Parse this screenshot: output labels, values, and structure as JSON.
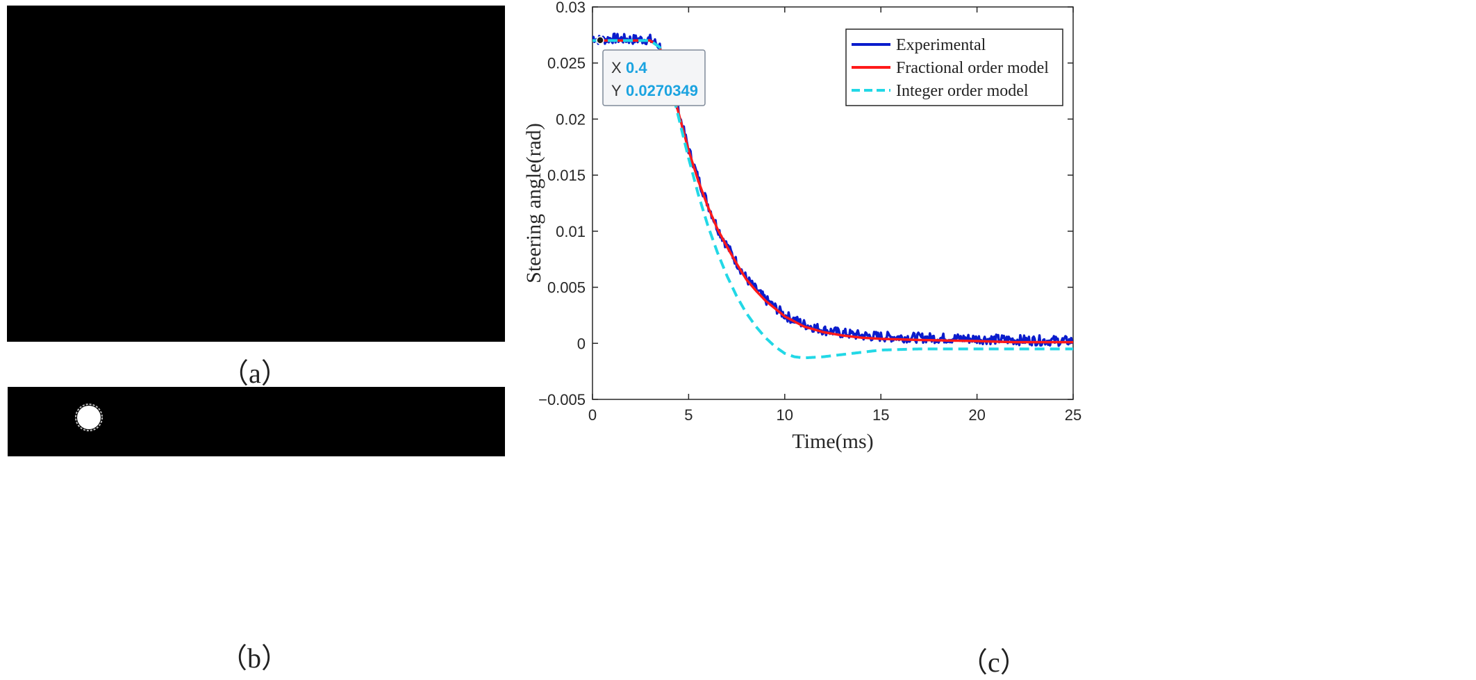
{
  "panels": {
    "a": {
      "caption": "（a）"
    },
    "b": {
      "caption": "（b）"
    },
    "c": {
      "caption": "（c）"
    }
  },
  "colors": {
    "experimental": "#0a1ccc",
    "fractional": "#ff1a1a",
    "integer": "#22d8e6",
    "datatip_value": "#1aa3e0"
  },
  "chart_data": {
    "type": "line",
    "xlabel": "Time(ms)",
    "ylabel": "Steering angle(rad)",
    "xlim": [
      0,
      25
    ],
    "ylim": [
      -0.005,
      0.03
    ],
    "xticks": [
      "0",
      "5",
      "10",
      "15",
      "20",
      "25"
    ],
    "yticks": [
      "−0.005",
      "0",
      "0.005",
      "0.01",
      "0.015",
      "0.02",
      "0.025",
      "0.03"
    ],
    "xtick_values": [
      0,
      5,
      10,
      15,
      20,
      25
    ],
    "ytick_values": [
      -0.005,
      0,
      0.005,
      0.01,
      0.015,
      0.02,
      0.025,
      0.03
    ],
    "legend_position": "top-right",
    "grid": false,
    "series": [
      {
        "name": "Experimental",
        "color": "#0a1ccc",
        "style": "solid",
        "noisy": true,
        "x": [
          0,
          0.4,
          1,
          2,
          3,
          3.5,
          4,
          4.5,
          5,
          5.5,
          6,
          6.5,
          7,
          7.5,
          8,
          8.5,
          9,
          10,
          11,
          12,
          13,
          14,
          15,
          17,
          20,
          22,
          25
        ],
        "y": [
          0.0273,
          0.0270349,
          0.0272,
          0.0271,
          0.0271,
          0.0265,
          0.0238,
          0.0205,
          0.0173,
          0.0147,
          0.0124,
          0.0103,
          0.0087,
          0.0072,
          0.0058,
          0.0048,
          0.0039,
          0.0025,
          0.0017,
          0.0012,
          0.0009,
          0.0007,
          0.0006,
          0.0005,
          0.0004,
          0.0003,
          0.0002
        ]
      },
      {
        "name": "Fractional order model",
        "color": "#ff1a1a",
        "style": "solid",
        "x": [
          0,
          1,
          2,
          3,
          3.5,
          4,
          4.5,
          5,
          5.5,
          6,
          6.5,
          7,
          7.5,
          8,
          8.5,
          9,
          10,
          11,
          12,
          13,
          14,
          15,
          17,
          20,
          22,
          25
        ],
        "y": [
          0.027,
          0.027,
          0.027,
          0.027,
          0.0264,
          0.0236,
          0.0204,
          0.0172,
          0.0145,
          0.0122,
          0.0102,
          0.0086,
          0.0071,
          0.0057,
          0.0047,
          0.0038,
          0.0024,
          0.0015,
          0.001,
          0.0007,
          0.0005,
          0.0004,
          0.0003,
          0.0002,
          0.0001,
          0.0001
        ]
      },
      {
        "name": "Integer order model",
        "color": "#22d8e6",
        "style": "dashed",
        "x": [
          0,
          1,
          2,
          3,
          3.5,
          4,
          4.5,
          5,
          5.5,
          6,
          6.5,
          7,
          7.5,
          8,
          8.5,
          9,
          9.5,
          10,
          10.5,
          11,
          12,
          13,
          14,
          15,
          17,
          20,
          22,
          25
        ],
        "y": [
          0.027,
          0.027,
          0.027,
          0.027,
          0.0264,
          0.0235,
          0.02,
          0.0165,
          0.0133,
          0.0105,
          0.0081,
          0.006,
          0.0042,
          0.0027,
          0.0015,
          0.0005,
          -0.0003,
          -0.0009,
          -0.0012,
          -0.0013,
          -0.0012,
          -0.001,
          -0.0008,
          -0.0006,
          -0.0005,
          -0.0005,
          -0.0005,
          -0.0005
        ]
      }
    ],
    "datatip": {
      "x_label": "X",
      "x_value": "0.4",
      "y_label": "Y",
      "y_value": "0.0270349",
      "x": 0.4,
      "y": 0.0270349
    }
  }
}
